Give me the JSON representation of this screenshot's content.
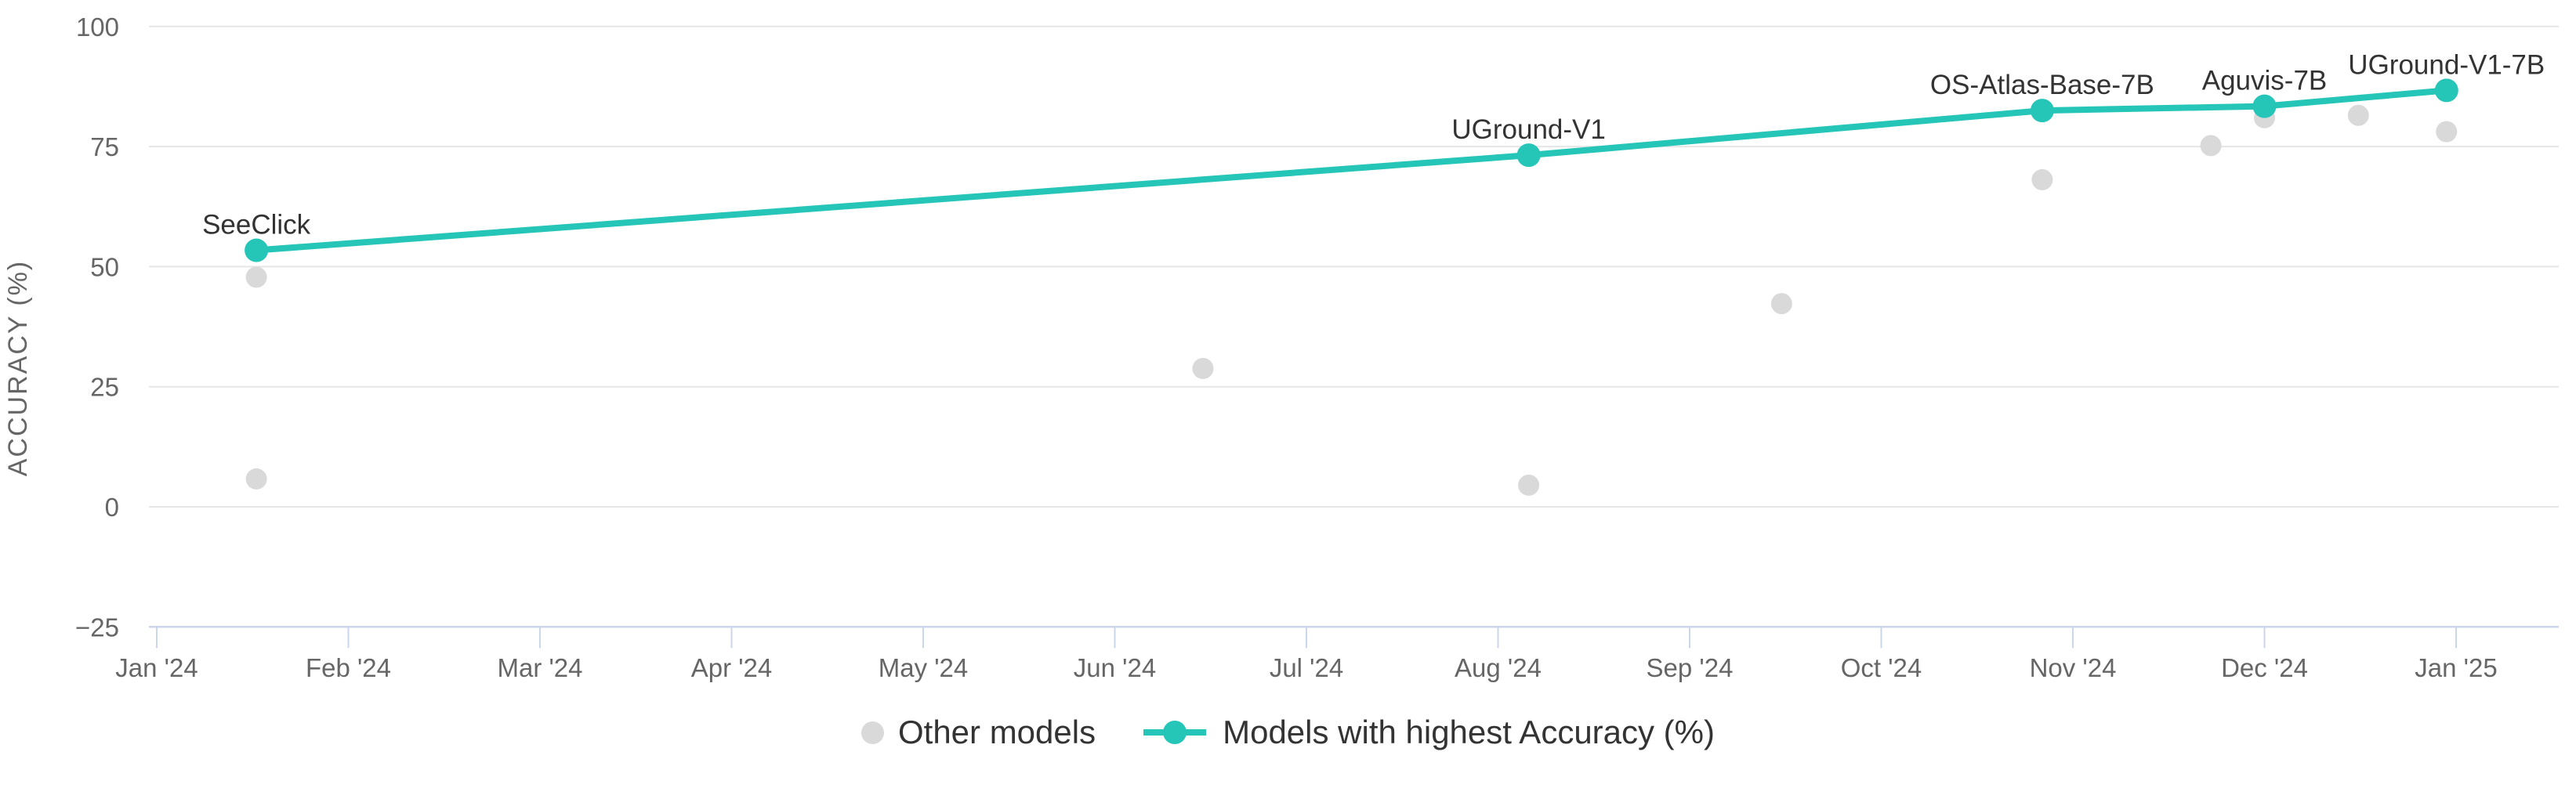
{
  "chart_data": {
    "type": "line+scatter",
    "title": "",
    "xlabel": "",
    "ylabel": "ACCURACY (%)",
    "x_axis": {
      "type": "time-months",
      "tick_labels": [
        "Jan '24",
        "Feb '24",
        "Mar '24",
        "Apr '24",
        "May '24",
        "Jun '24",
        "Jul '24",
        "Aug '24",
        "Sep '24",
        "Oct '24",
        "Nov '24",
        "Dec '24",
        "Jan '25"
      ]
    },
    "y_axis": {
      "ticks": [
        100,
        75,
        50,
        25,
        0,
        -25
      ],
      "tick_labels": [
        "100",
        "75",
        "50",
        "25",
        "0",
        "−25"
      ],
      "range": [
        -25,
        100
      ],
      "grid": true
    },
    "series": [
      {
        "name": "Models with highest Accuracy (%)",
        "type": "line",
        "color_key": "teal",
        "points": [
          {
            "label": "SeeClick",
            "x_month": 0.52,
            "value": 53.4
          },
          {
            "label": "UGround-V1",
            "x_month": 7.16,
            "value": 73.2
          },
          {
            "label": "OS-Atlas-Base-7B",
            "x_month": 9.84,
            "value": 82.5
          },
          {
            "label": "Aguvis-7B",
            "x_month": 11.0,
            "value": 83.4
          },
          {
            "label": "UGround-V1-7B",
            "x_month": 11.95,
            "value": 86.7
          }
        ]
      },
      {
        "name": "Other models",
        "type": "scatter",
        "color_key": "gray",
        "points": [
          {
            "x_month": 0.52,
            "value": 47.8
          },
          {
            "x_month": 0.52,
            "value": 5.8
          },
          {
            "x_month": 5.46,
            "value": 28.8
          },
          {
            "x_month": 7.16,
            "value": 4.5
          },
          {
            "x_month": 8.48,
            "value": 42.3
          },
          {
            "x_month": 9.84,
            "value": 68.1
          },
          {
            "x_month": 10.72,
            "value": 75.2
          },
          {
            "x_month": 11.0,
            "value": 81.0
          },
          {
            "x_month": 11.49,
            "value": 81.5
          },
          {
            "x_month": 11.95,
            "value": 78.1
          }
        ]
      }
    ],
    "legend": {
      "position": "bottom-center",
      "items": [
        "Other models",
        "Models with highest Accuracy (%)"
      ]
    },
    "colors": {
      "teal": "#25c5b8",
      "gray": "#d9d9d9",
      "gridline": "#e6e6e6",
      "axis_line": "#ccd6eb",
      "tick_text": "#666666",
      "label_text": "#333333"
    }
  }
}
